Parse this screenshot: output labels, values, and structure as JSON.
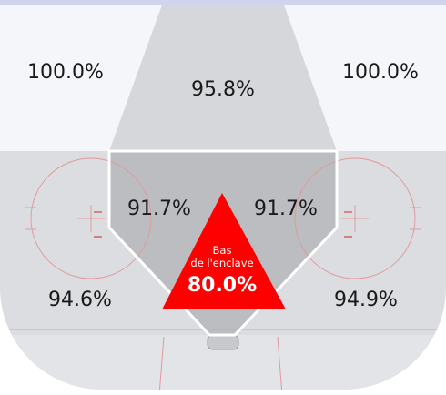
{
  "zones": {
    "top_left": {
      "value": "100.0%"
    },
    "top_center": {
      "value": "95.8%"
    },
    "top_right": {
      "value": "100.0%"
    },
    "slot_left": {
      "value": "91.7%"
    },
    "slot_right": {
      "value": "91.7%"
    },
    "low_slot": {
      "label_line1": "Bas",
      "label_line2": "de l'enclave",
      "value": "80.0%"
    },
    "bottom_left": {
      "value": "94.6%"
    },
    "bottom_right": {
      "value": "94.9%"
    }
  },
  "colors": {
    "perimeter_zone": "#f4f6fa",
    "point_lane": "#d6d7db",
    "corner_zone": "#dcdde0",
    "slot_zone": "#bcbdc0",
    "low_slot_highlight": "#ff0000",
    "rink_top_stripe": "#d2d3ee",
    "rink_lines": "#e29a9a"
  }
}
